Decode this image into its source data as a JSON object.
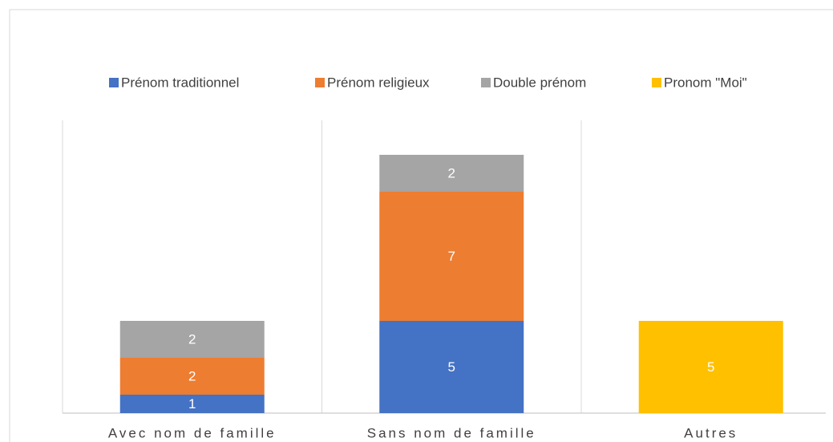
{
  "chart_data": {
    "type": "stacked_bar",
    "categories": [
      "Avec nom de famille",
      "Sans nom de famille",
      "Autres"
    ],
    "series": [
      {
        "name": "Prénom traditionnel",
        "color": "#4472c4",
        "values": [
          1,
          5,
          null
        ]
      },
      {
        "name": "Prénom religieux",
        "color": "#ed7d31",
        "values": [
          2,
          7,
          null
        ]
      },
      {
        "name": "Double prénom",
        "color": "#a5a5a5",
        "values": [
          2,
          2,
          null
        ]
      },
      {
        "name": "Pronom \"Moi\"",
        "color": "#ffc000",
        "values": [
          null,
          null,
          5
        ]
      }
    ],
    "legend": "top",
    "grid": "vertical"
  }
}
